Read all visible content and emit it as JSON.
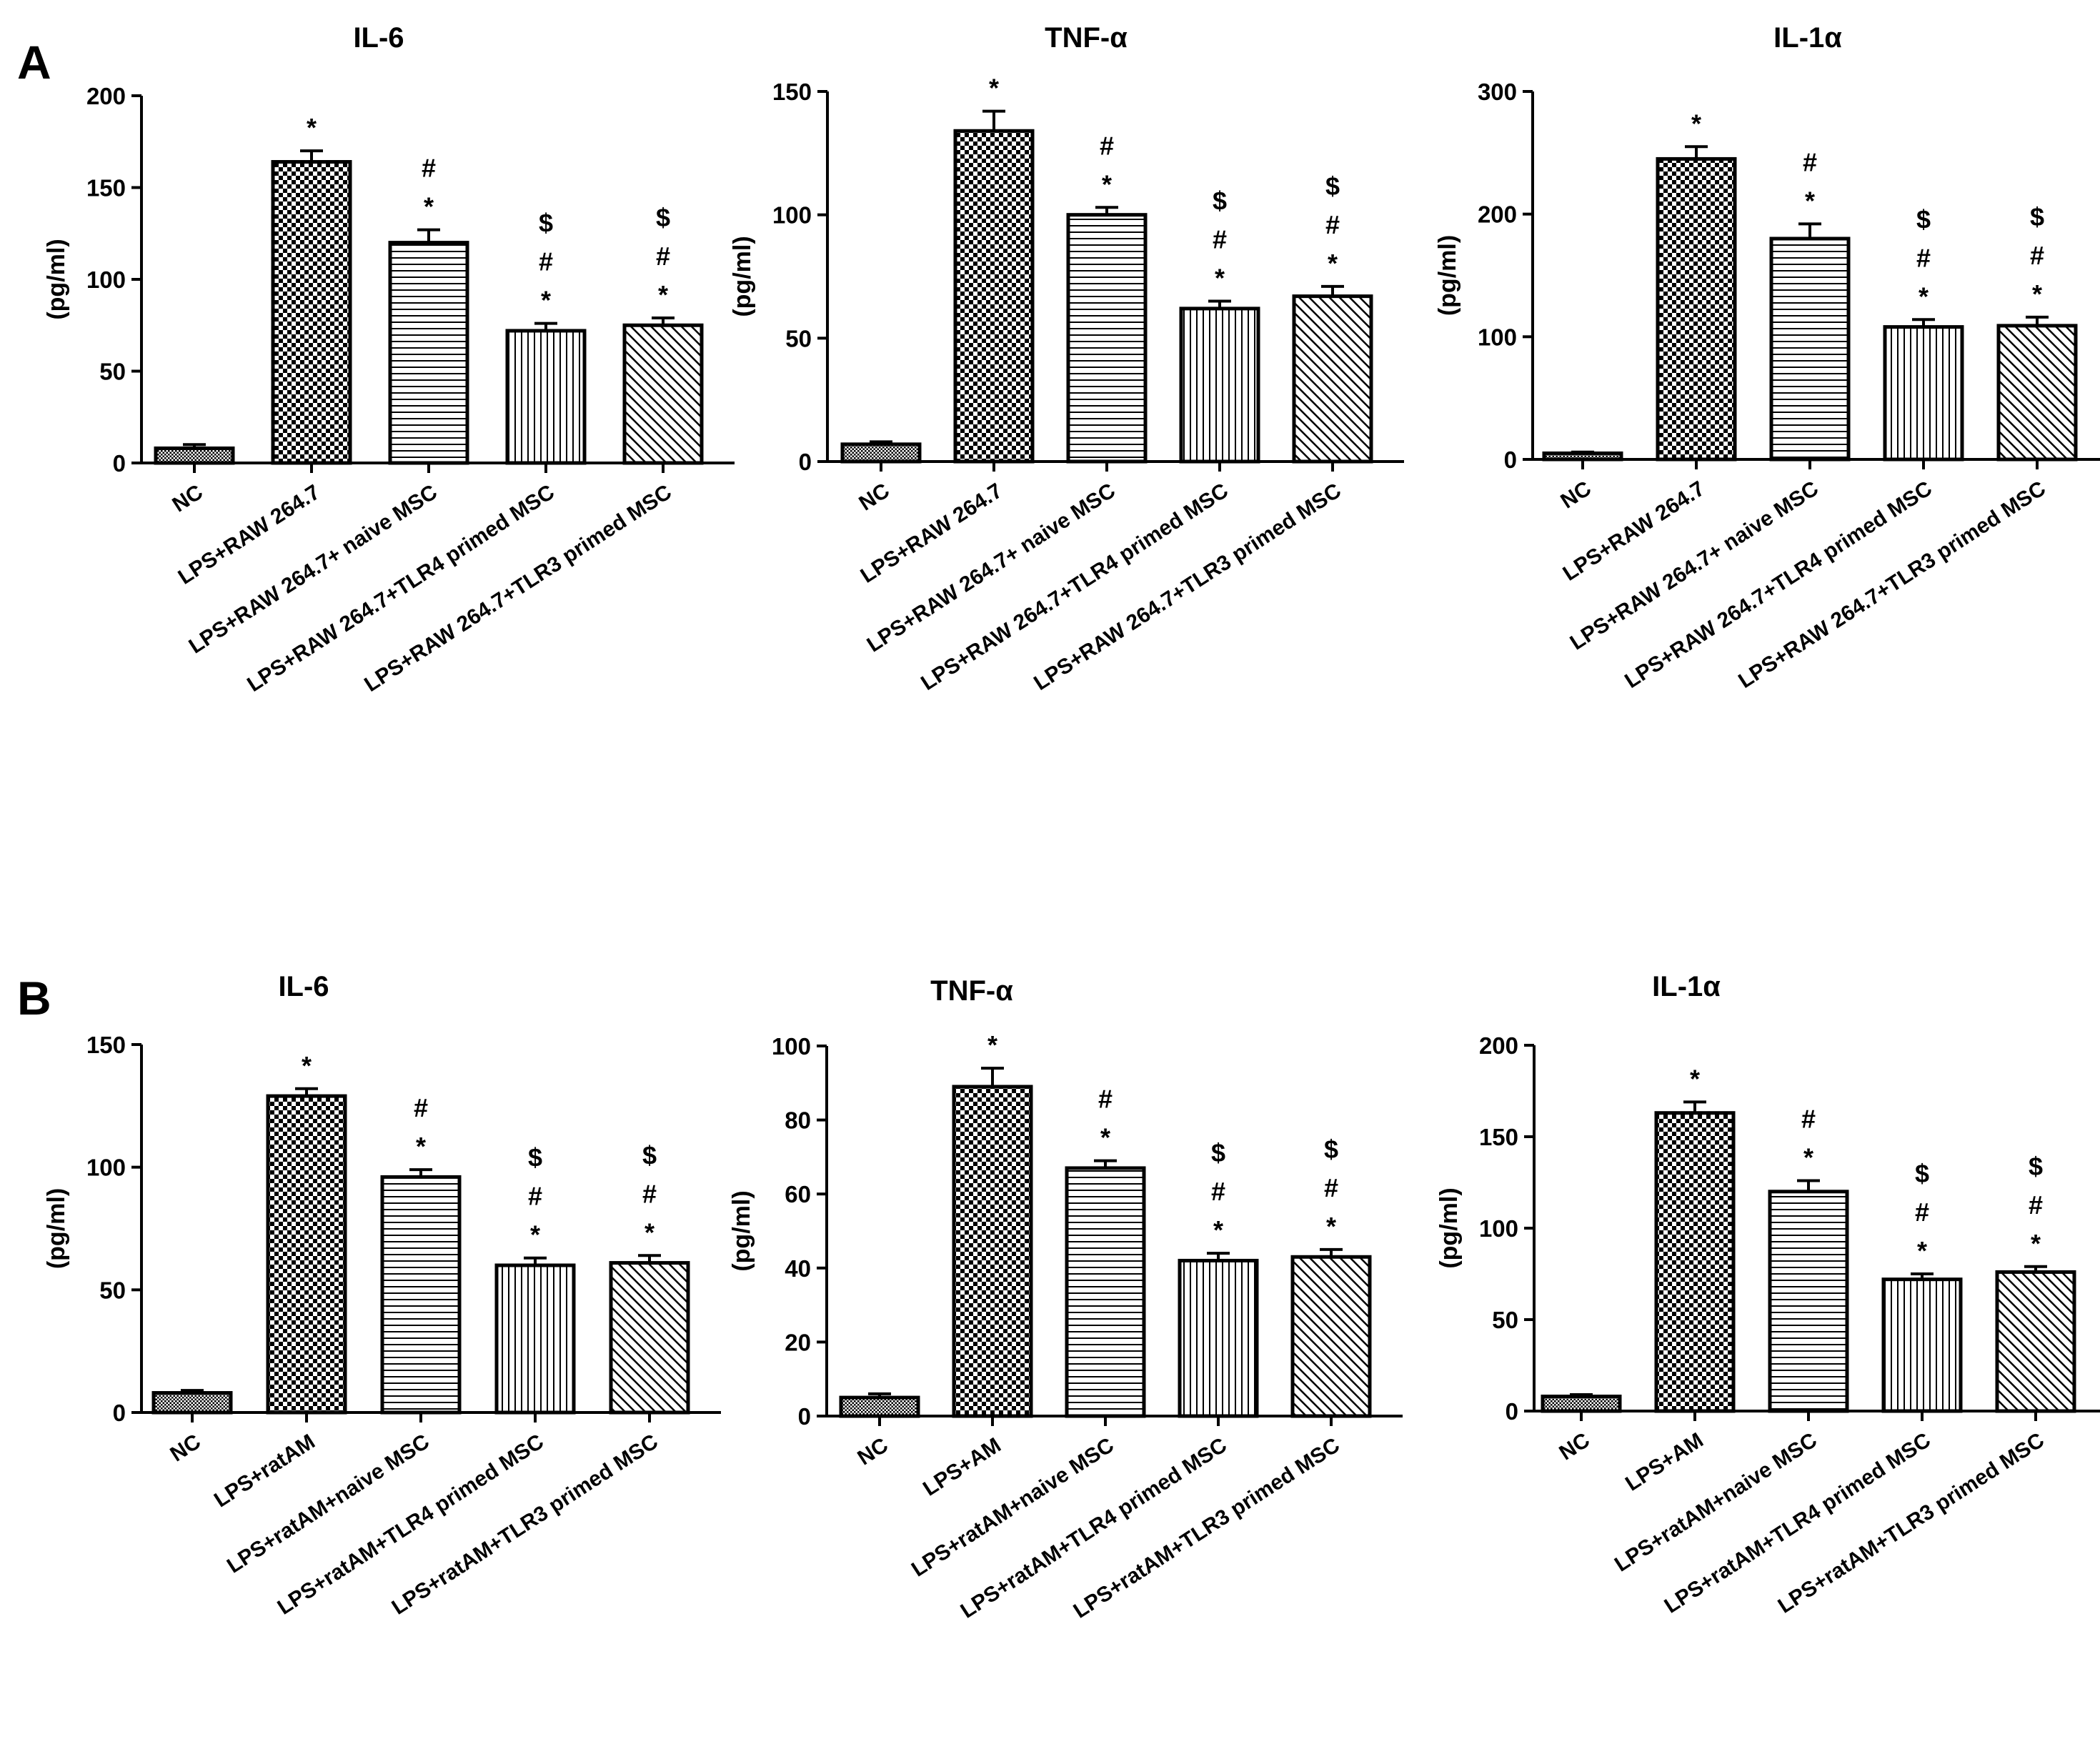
{
  "figure": {
    "panels": [
      {
        "label": "A"
      },
      {
        "label": "B"
      }
    ]
  },
  "chart_data": [
    {
      "panel": "A",
      "type": "bar",
      "title": "IL-6",
      "ylabel": "(pg/ml)",
      "xlabel": "",
      "ylim": [
        0,
        200
      ],
      "yticks": [
        0,
        50,
        100,
        150,
        200
      ],
      "categories": [
        "NC",
        "LPS+RAW 264.7",
        "LPS+RAW 264.7+ naive MSC",
        "LPS+RAW 264.7+TLR4 primed MSC",
        "LPS+RAW 264.7+TLR3 primed MSC"
      ],
      "values": [
        8,
        164,
        120,
        72,
        75
      ],
      "errors": [
        2,
        6,
        7,
        4,
        4
      ],
      "patterns": [
        "fine",
        "checker",
        "hlines",
        "vlines",
        "diag"
      ],
      "significance": [
        [],
        [
          "*"
        ],
        [
          "#",
          "*"
        ],
        [
          "$",
          "#",
          "*"
        ],
        [
          "$",
          "#",
          "*"
        ]
      ]
    },
    {
      "panel": "A",
      "type": "bar",
      "title": "TNF-α",
      "ylabel": "(pg/ml)",
      "xlabel": "",
      "ylim": [
        0,
        150
      ],
      "yticks": [
        0,
        50,
        100,
        150
      ],
      "categories": [
        "NC",
        "LPS+RAW 264.7",
        "LPS+RAW 264.7+ naive MSC",
        "LPS+RAW 264.7+TLR4 primed MSC",
        "LPS+RAW 264.7+TLR3 primed MSC"
      ],
      "values": [
        7,
        134,
        100,
        62,
        67
      ],
      "errors": [
        1,
        8,
        3,
        3,
        4
      ],
      "patterns": [
        "fine",
        "checker",
        "hlines",
        "vlines",
        "diag"
      ],
      "significance": [
        [],
        [
          "*"
        ],
        [
          "#",
          "*"
        ],
        [
          "$",
          "#",
          "*"
        ],
        [
          "$",
          "#",
          "*"
        ]
      ]
    },
    {
      "panel": "A",
      "type": "bar",
      "title": "IL-1α",
      "ylabel": "(pg/ml)",
      "xlabel": "",
      "ylim": [
        0,
        300
      ],
      "yticks": [
        0,
        100,
        200,
        300
      ],
      "categories": [
        "NC",
        "LPS+RAW 264.7",
        "LPS+RAW 264.7+ naive MSC",
        "LPS+RAW 264.7+TLR4 primed MSC",
        "LPS+RAW 264.7+TLR3 primed MSC"
      ],
      "values": [
        5,
        245,
        180,
        108,
        109
      ],
      "errors": [
        1,
        10,
        12,
        6,
        7
      ],
      "patterns": [
        "fine",
        "checker",
        "hlines",
        "vlines",
        "diag"
      ],
      "significance": [
        [],
        [
          "*"
        ],
        [
          "#",
          "*"
        ],
        [
          "$",
          "#",
          "*"
        ],
        [
          "$",
          "#",
          "*"
        ]
      ]
    },
    {
      "panel": "B",
      "type": "bar",
      "title": "IL-6",
      "ylabel": "(pg/ml)",
      "xlabel": "",
      "ylim": [
        0,
        150
      ],
      "yticks": [
        0,
        50,
        100,
        150
      ],
      "categories": [
        "NC",
        "LPS+ratAM",
        "LPS+ratAM+naive MSC",
        "LPS+ratAM+TLR4 primed MSC",
        "LPS+ratAM+TLR3 primed MSC"
      ],
      "values": [
        8,
        129,
        96,
        60,
        61
      ],
      "errors": [
        1,
        3,
        3,
        3,
        3
      ],
      "patterns": [
        "fine",
        "checker",
        "hlines",
        "vlines",
        "diag"
      ],
      "significance": [
        [],
        [
          "*"
        ],
        [
          "#",
          "*"
        ],
        [
          "$",
          "#",
          "*"
        ],
        [
          "$",
          "#",
          "*"
        ]
      ]
    },
    {
      "panel": "B",
      "type": "bar",
      "title": "TNF-α",
      "ylabel": "(pg/ml)",
      "xlabel": "",
      "ylim": [
        0,
        100
      ],
      "yticks": [
        0,
        20,
        40,
        60,
        80,
        100
      ],
      "categories": [
        "NC",
        "LPS+AM",
        "LPS+ratAM+naive MSC",
        "LPS+ratAM+TLR4 primed MSC",
        "LPS+ratAM+TLR3 primed MSC"
      ],
      "values": [
        5,
        89,
        67,
        42,
        43
      ],
      "errors": [
        1,
        5,
        2,
        2,
        2
      ],
      "patterns": [
        "fine",
        "checker",
        "hlines",
        "vlines",
        "diag"
      ],
      "significance": [
        [],
        [
          "*"
        ],
        [
          "#",
          "*"
        ],
        [
          "$",
          "#",
          "*"
        ],
        [
          "$",
          "#",
          "*"
        ]
      ]
    },
    {
      "panel": "B",
      "type": "bar",
      "title": "IL-1α",
      "ylabel": "(pg/ml)",
      "xlabel": "",
      "ylim": [
        0,
        200
      ],
      "yticks": [
        0,
        50,
        100,
        150,
        200
      ],
      "categories": [
        "NC",
        "LPS+AM",
        "LPS+ratAM+naive MSC",
        "LPS+ratAM+TLR4 primed MSC",
        "LPS+ratAM+TLR3 primed MSC"
      ],
      "values": [
        8,
        163,
        120,
        72,
        76
      ],
      "errors": [
        1,
        6,
        6,
        3,
        3
      ],
      "patterns": [
        "fine",
        "checker",
        "hlines",
        "vlines",
        "diag"
      ],
      "significance": [
        [],
        [
          "*"
        ],
        [
          "#",
          "*"
        ],
        [
          "$",
          "#",
          "*"
        ],
        [
          "$",
          "#",
          "*"
        ]
      ]
    }
  ]
}
